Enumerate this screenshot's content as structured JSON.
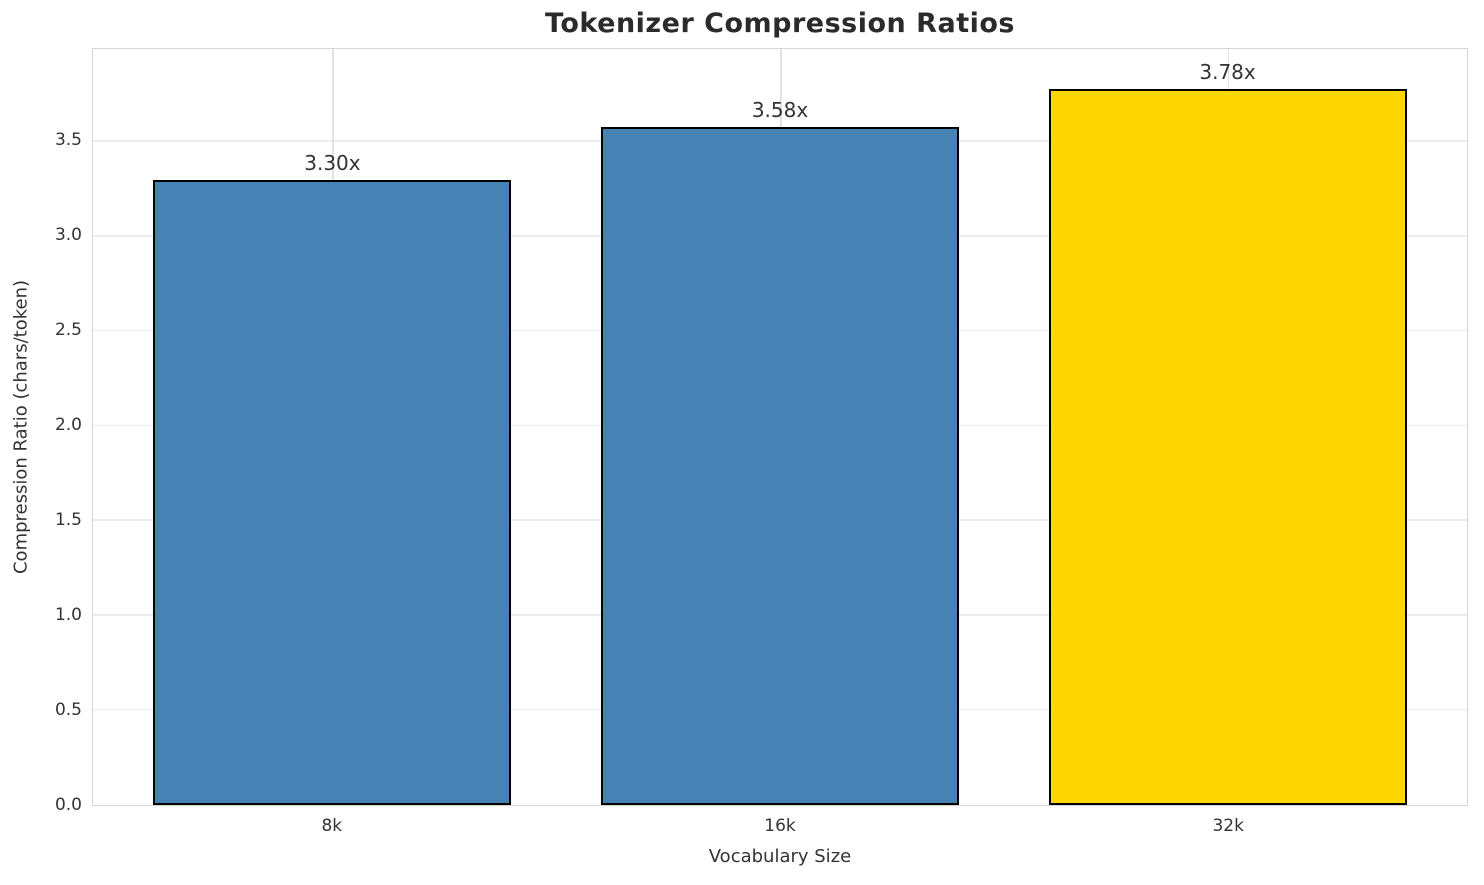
{
  "chart_data": {
    "type": "bar",
    "title": "Tokenizer Compression Ratios",
    "xlabel": "Vocabulary Size",
    "ylabel": "Compression Ratio (chars/token)",
    "categories": [
      "8k",
      "16k",
      "32k"
    ],
    "values": [
      3.3,
      3.58,
      3.78
    ],
    "bar_labels": [
      "3.30x",
      "3.58x",
      "3.78x"
    ],
    "bar_colors": [
      "#4682b4",
      "#4682b4",
      "#ffd700"
    ],
    "bar_edge_color": "#000000",
    "bar_width_units": 0.8,
    "xlim": [
      -0.535,
      2.535
    ],
    "ylim": [
      0,
      3.99
    ],
    "yticks": [
      0.0,
      0.5,
      1.0,
      1.5,
      2.0,
      2.5,
      3.0,
      3.5
    ],
    "ytick_labels": [
      "0.0",
      "0.5",
      "1.0",
      "1.5",
      "2.0",
      "2.5",
      "3.0",
      "3.5"
    ],
    "grid": true,
    "legend": "none"
  }
}
